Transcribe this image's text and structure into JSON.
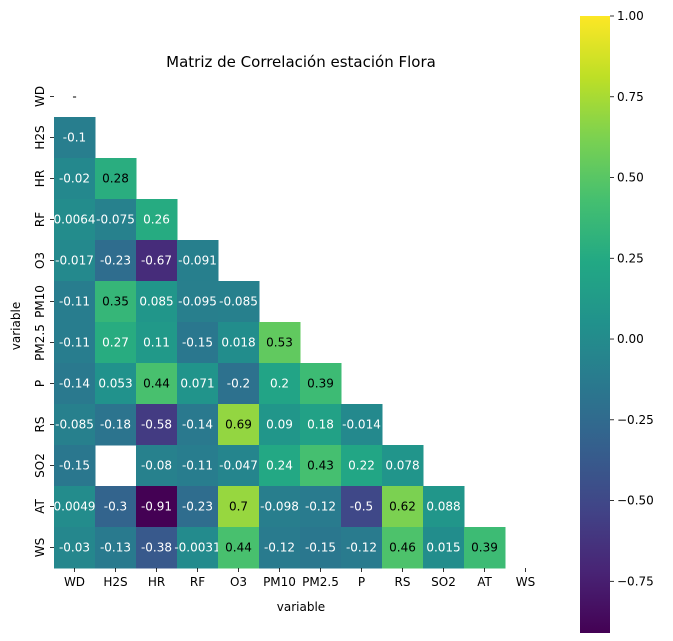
{
  "chart_data": {
    "type": "heatmap",
    "title": "Matriz de Correlación estación Flora",
    "xlabel": "variable",
    "ylabel": "variable",
    "labels": [
      "WD",
      "H2S",
      "HR",
      "RF",
      "O3",
      "PM10",
      "PM2.5",
      "P",
      "RS",
      "SO2",
      "AT",
      "WS"
    ],
    "matrix": [
      [
        null,
        null,
        null,
        null,
        null,
        null,
        null,
        null,
        null,
        null,
        null,
        null
      ],
      [
        -0.1,
        null,
        null,
        null,
        null,
        null,
        null,
        null,
        null,
        null,
        null,
        null
      ],
      [
        -0.02,
        0.28,
        null,
        null,
        null,
        null,
        null,
        null,
        null,
        null,
        null,
        null
      ],
      [
        0.0064,
        -0.075,
        0.26,
        null,
        null,
        null,
        null,
        null,
        null,
        null,
        null,
        null
      ],
      [
        -0.017,
        -0.23,
        -0.67,
        -0.091,
        null,
        null,
        null,
        null,
        null,
        null,
        null,
        null
      ],
      [
        -0.11,
        0.35,
        0.085,
        -0.095,
        -0.085,
        null,
        null,
        null,
        null,
        null,
        null,
        null
      ],
      [
        -0.11,
        0.27,
        0.11,
        -0.15,
        0.018,
        0.53,
        null,
        null,
        null,
        null,
        null,
        null
      ],
      [
        -0.14,
        0.053,
        0.44,
        0.071,
        -0.2,
        0.2,
        0.39,
        null,
        null,
        null,
        null,
        null
      ],
      [
        -0.085,
        -0.18,
        -0.58,
        -0.14,
        0.69,
        0.09,
        0.18,
        -0.014,
        null,
        null,
        null,
        null
      ],
      [
        -0.15,
        null,
        -0.08,
        -0.11,
        -0.047,
        0.24,
        0.43,
        0.22,
        0.078,
        null,
        null,
        null
      ],
      [
        0.0049,
        -0.3,
        -0.91,
        -0.23,
        0.7,
        -0.098,
        -0.12,
        -0.5,
        0.62,
        0.088,
        null,
        null
      ],
      [
        -0.03,
        -0.13,
        -0.38,
        -0.0031,
        0.44,
        -0.12,
        -0.15,
        -0.12,
        0.46,
        0.015,
        0.39,
        null
      ]
    ],
    "cell_text": [
      [
        "-",
        "",
        "",
        "",
        "",
        "",
        "",
        "",
        "",
        "",
        "",
        ""
      ],
      [
        "-0.1",
        "",
        "",
        "",
        "",
        "",
        "",
        "",
        "",
        "",
        "",
        ""
      ],
      [
        "-0.02",
        "0.28",
        "",
        "",
        "",
        "",
        "",
        "",
        "",
        "",
        "",
        ""
      ],
      [
        "0.0064",
        "-0.075",
        "0.26",
        "",
        "",
        "",
        "",
        "",
        "",
        "",
        "",
        ""
      ],
      [
        "-0.017",
        "-0.23",
        "-0.67",
        "-0.091",
        "",
        "",
        "",
        "",
        "",
        "",
        "",
        ""
      ],
      [
        "-0.11",
        "0.35",
        "0.085",
        "-0.095",
        "-0.085",
        "",
        "",
        "",
        "",
        "",
        "",
        ""
      ],
      [
        "-0.11",
        "0.27",
        "0.11",
        "-0.15",
        "0.018",
        "0.53",
        "",
        "",
        "",
        "",
        "",
        ""
      ],
      [
        "-0.14",
        "0.053",
        "0.44",
        "0.071",
        "-0.2",
        "0.2",
        "0.39",
        "",
        "",
        "",
        "",
        ""
      ],
      [
        "-0.085",
        "-0.18",
        "-0.58",
        "-0.14",
        "0.69",
        "0.09",
        "0.18",
        "-0.014",
        "",
        "",
        "",
        ""
      ],
      [
        "-0.15",
        "",
        "-0.08",
        "-0.11",
        "-0.047",
        "0.24",
        "0.43",
        "0.22",
        "0.078",
        "",
        "",
        ""
      ],
      [
        "0.0049",
        "-0.3",
        "-0.91",
        "-0.23",
        "0.7",
        "-0.098",
        "-0.12",
        "-0.5",
        "0.62",
        "0.088",
        "",
        ""
      ],
      [
        "-0.03",
        "-0.13",
        "-0.38",
        "-0.0031",
        "0.44",
        "-0.12",
        "-0.15",
        "-0.12",
        "0.46",
        "0.015",
        "0.39",
        ""
      ]
    ],
    "colormap": "viridis",
    "vmin": -0.91,
    "vmax": 1.0,
    "mask": "upper-triangle",
    "colorbar_ticks": [
      1.0,
      0.75,
      0.5,
      0.25,
      0.0,
      -0.25,
      -0.5,
      -0.75
    ],
    "colorbar_tick_labels": [
      "1.00",
      "0.75",
      "0.50",
      "0.25",
      "0.00",
      "−0.25",
      "−0.50",
      "−0.75"
    ]
  }
}
